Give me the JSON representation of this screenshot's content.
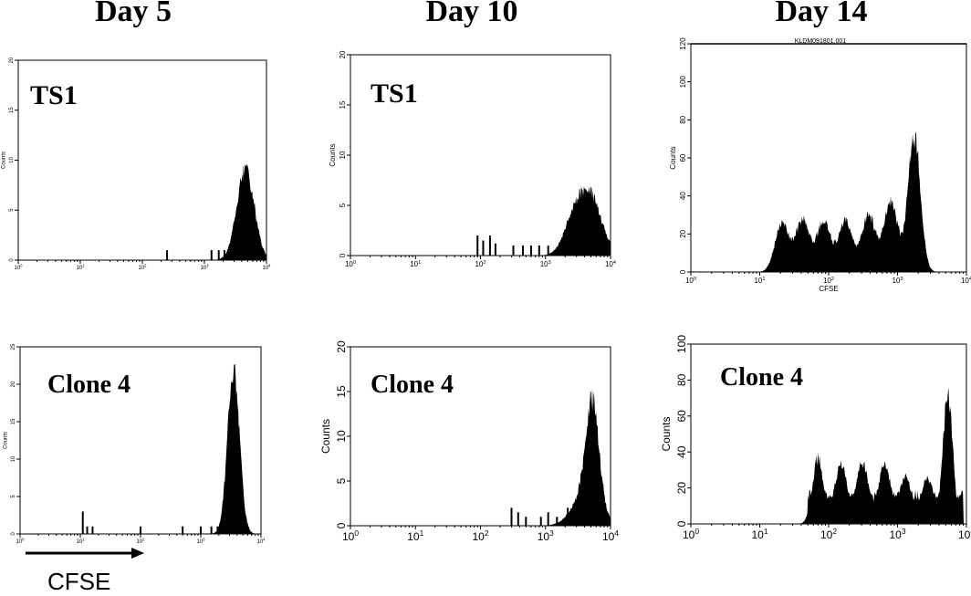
{
  "columns": [
    "Day 5",
    "Day 10",
    "Day 14"
  ],
  "panel_header_text": "KLDM091801.001",
  "footer_axis_label": "CFSE",
  "colors": {
    "fill": "#000000",
    "axis": "#000000",
    "background": "#ffffff"
  },
  "chart_data": [
    {
      "type": "area",
      "label": "TS1",
      "column": "Day 5",
      "row": 1,
      "xlabel": "",
      "ylabel": "Counts",
      "xscale": "log",
      "xlim": [
        1,
        10000
      ],
      "ylim": [
        0,
        20
      ],
      "yticks": [
        0,
        5,
        10,
        15,
        20
      ],
      "xticks": [
        "10^0",
        "10^1",
        "10^2",
        "10^3",
        "10^4"
      ],
      "peaks": [
        {
          "x": 4600,
          "y": 10,
          "width": 0.14
        }
      ],
      "spikes": [
        {
          "x": 250,
          "y": 1
        },
        {
          "x": 1300,
          "y": 1
        },
        {
          "x": 1700,
          "y": 1
        },
        {
          "x": 2100,
          "y": 1
        }
      ]
    },
    {
      "type": "area",
      "label": "TS1",
      "column": "Day 10",
      "row": 1,
      "xlabel": "",
      "ylabel": "Counts",
      "xscale": "log",
      "xlim": [
        1,
        10000
      ],
      "ylim": [
        0,
        20
      ],
      "yticks": [
        0,
        5,
        10,
        15,
        20
      ],
      "xticks": [
        "10^0",
        "10^1",
        "10^2",
        "10^3",
        "10^4"
      ],
      "peaks": [
        {
          "x": 4800,
          "y": 6.5,
          "width": 0.18
        },
        {
          "x": 2600,
          "y": 3,
          "width": 0.15
        }
      ],
      "spikes": [
        {
          "x": 90,
          "y": 2
        },
        {
          "x": 110,
          "y": 1.5
        },
        {
          "x": 140,
          "y": 2
        },
        {
          "x": 170,
          "y": 1.2
        },
        {
          "x": 320,
          "y": 1
        },
        {
          "x": 450,
          "y": 1
        },
        {
          "x": 600,
          "y": 1
        },
        {
          "x": 800,
          "y": 1
        },
        {
          "x": 1100,
          "y": 1
        }
      ]
    },
    {
      "type": "area",
      "label": "",
      "column": "Day 14",
      "row": 1,
      "xlabel": "CFSE",
      "ylabel": "Counts",
      "xscale": "log",
      "xlim": [
        1,
        10000
      ],
      "ylim": [
        0,
        120
      ],
      "yticks": [
        0,
        20,
        40,
        60,
        80,
        100,
        120
      ],
      "xticks": [
        "10^0",
        "10^1",
        "10^2",
        "10^3",
        "10^4"
      ],
      "peaks": [
        {
          "x": 21,
          "y": 28,
          "width": 0.1
        },
        {
          "x": 42,
          "y": 30,
          "width": 0.1
        },
        {
          "x": 85,
          "y": 29,
          "width": 0.1
        },
        {
          "x": 175,
          "y": 29,
          "width": 0.1
        },
        {
          "x": 380,
          "y": 33,
          "width": 0.1
        },
        {
          "x": 800,
          "y": 42,
          "width": 0.1
        },
        {
          "x": 1750,
          "y": 78,
          "width": 0.09
        }
      ],
      "spikes": []
    },
    {
      "type": "area",
      "label": "Clone 4",
      "column": "Day 5",
      "row": 2,
      "xlabel": "",
      "ylabel": "Counts",
      "xscale": "log",
      "xlim": [
        1,
        10000
      ],
      "ylim": [
        0,
        25
      ],
      "yticks": [
        0,
        5,
        10,
        15,
        20,
        25
      ],
      "xticks": [
        "10^0",
        "10^1",
        "10^2",
        "10^3",
        "10^4"
      ],
      "peaks": [
        {
          "x": 3500,
          "y": 24,
          "width": 0.1
        }
      ],
      "spikes": [
        {
          "x": 11,
          "y": 3
        },
        {
          "x": 13,
          "y": 1
        },
        {
          "x": 16,
          "y": 1
        },
        {
          "x": 100,
          "y": 1
        },
        {
          "x": 500,
          "y": 1
        },
        {
          "x": 1000,
          "y": 1
        },
        {
          "x": 1500,
          "y": 1
        },
        {
          "x": 1900,
          "y": 1
        }
      ]
    },
    {
      "type": "area",
      "label": "Clone 4",
      "column": "Day 10",
      "row": 2,
      "xlabel": "",
      "ylabel": "Counts",
      "xscale": "log",
      "xlim": [
        1,
        10000
      ],
      "ylim": [
        0,
        20
      ],
      "yticks": [
        0,
        5,
        10,
        15,
        20
      ],
      "xticks": [
        "10^0",
        "10^1",
        "10^2",
        "10^3",
        "10^4"
      ],
      "peaks": [
        {
          "x": 5300,
          "y": 12,
          "width": 0.1
        },
        {
          "x": 4200,
          "y": 4,
          "width": 0.2
        }
      ],
      "spikes": [
        {
          "x": 300,
          "y": 2
        },
        {
          "x": 380,
          "y": 1.5
        },
        {
          "x": 500,
          "y": 1
        },
        {
          "x": 850,
          "y": 1
        },
        {
          "x": 1100,
          "y": 1.5
        },
        {
          "x": 1500,
          "y": 1
        },
        {
          "x": 2200,
          "y": 2
        }
      ]
    },
    {
      "type": "area",
      "label": "Clone 4",
      "column": "Day 14",
      "row": 2,
      "xlabel": "",
      "ylabel": "Counts",
      "xscale": "log",
      "xlim": [
        1,
        10000
      ],
      "ylim": [
        0,
        100
      ],
      "yticks": [
        0,
        20,
        40,
        60,
        80,
        100
      ],
      "xticks": [
        "10^0",
        "10^1",
        "10^2",
        "10^3",
        "10^4"
      ],
      "peaks": [
        {
          "x": 70,
          "y": 40,
          "width": 0.08
        },
        {
          "x": 150,
          "y": 36,
          "width": 0.09
        },
        {
          "x": 310,
          "y": 37,
          "width": 0.09
        },
        {
          "x": 650,
          "y": 37,
          "width": 0.09
        },
        {
          "x": 1300,
          "y": 28,
          "width": 0.09
        },
        {
          "x": 2700,
          "y": 28,
          "width": 0.09
        },
        {
          "x": 5400,
          "y": 79,
          "width": 0.07
        }
      ],
      "baseline_from": 50,
      "baseline_level": 20,
      "spikes": []
    }
  ]
}
